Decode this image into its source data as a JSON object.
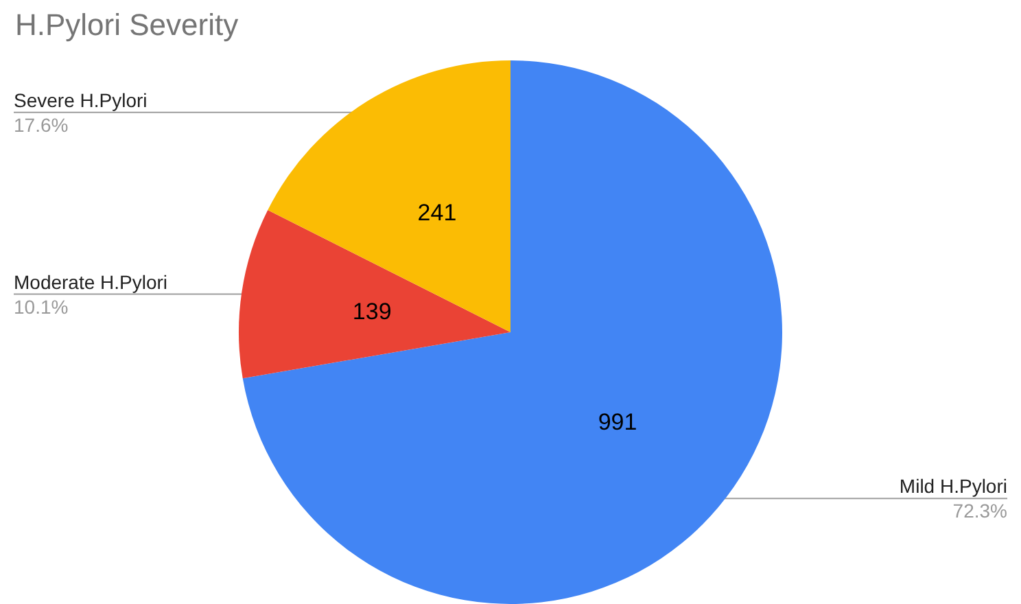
{
  "chart_data": {
    "type": "pie",
    "title": "H.Pylori Severity",
    "categories": [
      "Mild H.Pylori",
      "Moderate H.Pylori",
      "Severe H.Pylori"
    ],
    "values": [
      991,
      139,
      241
    ],
    "colors": [
      "#4285f4",
      "#ea4335",
      "#fbbc04"
    ],
    "annotations": [
      "72.3%",
      "10.1%",
      "17.6%"
    ],
    "data_labels": true
  }
}
